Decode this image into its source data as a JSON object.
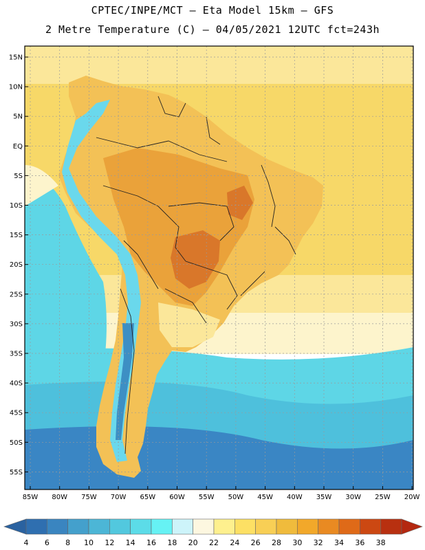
{
  "header": {
    "line1": "CPTEC/INPE/MCT –  Eta Model 15km – GFS",
    "line2": "2 Metre Temperature (C) – 04/05/2021 12UTC fct=243h"
  },
  "map": {
    "lat_labels": [
      "15N",
      "10N",
      "5N",
      "EQ",
      "5S",
      "10S",
      "15S",
      "20S",
      "25S",
      "30S",
      "35S",
      "40S",
      "45S",
      "50S",
      "55S"
    ],
    "lon_labels": [
      "85W",
      "80W",
      "75W",
      "70W",
      "65W",
      "60W",
      "55W",
      "50W",
      "45W",
      "40W",
      "35W",
      "30W",
      "25W",
      "20W"
    ]
  },
  "colorbar": {
    "labels": [
      "4",
      "6",
      "8",
      "10",
      "12",
      "14",
      "16",
      "18",
      "20",
      "22",
      "24",
      "26",
      "28",
      "30",
      "32",
      "34",
      "36",
      "38"
    ],
    "colors": [
      "#2f6fb0",
      "#3a85c0",
      "#44a0cc",
      "#4cb6d6",
      "#52c8de",
      "#5cdce8",
      "#66f2f4",
      "#cdf4fa",
      "#fdf7e0",
      "#fef08e",
      "#fde064",
      "#f8cf55",
      "#f0bb3c",
      "#f2a82a",
      "#e98a22",
      "#df6a18",
      "#cc4812",
      "#b83010"
    ],
    "low_color": "#2a62a0",
    "high_color": "#b42810"
  },
  "palette": {
    "ocean_tropical": "#f7d868",
    "ocean_warm": "#fbe79a",
    "ocean_mid": "#fdf4cc",
    "ocean_cool": "#5ed6e6",
    "ocean_cold": "#4ec0dc",
    "ocean_deep": "#3a86c4",
    "land_hot": "#eaa23a",
    "land_very_hot": "#d9772a",
    "land_warm": "#f3c156",
    "andes_cold": "#3d8fc4",
    "andes_cool": "#6ad8ec",
    "border": "#222222"
  }
}
